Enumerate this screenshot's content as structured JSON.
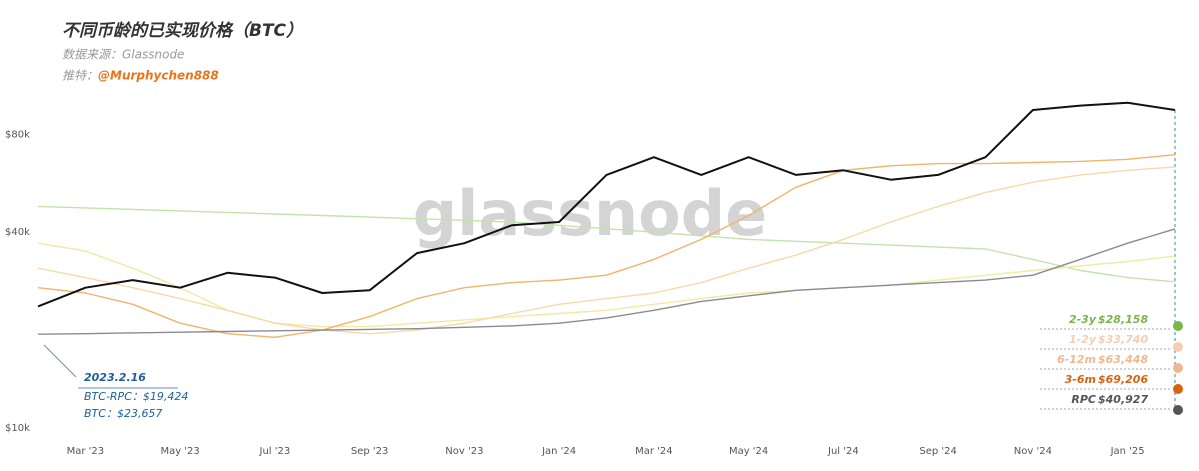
{
  "chart_data": {
    "type": "line",
    "title": "不同币龄的已实现价格（BTC）",
    "subtitle": "数据来源：Glassnode",
    "credit_prefix": "推特：",
    "credit": "@Murphychen888",
    "watermark": "glassnode",
    "yscale": "log",
    "ylim": [
      10000,
      120000
    ],
    "yticks": [
      {
        "value": 10000,
        "label": "$10k"
      },
      {
        "value": 40000,
        "label": "$40k"
      },
      {
        "value": 80000,
        "label": "$80k"
      }
    ],
    "categories": [
      null,
      "Mar '23",
      null,
      "May '23",
      null,
      "Jul '23",
      null,
      "Sep '23",
      null,
      "Nov '23",
      null,
      "Jan '24",
      null,
      "Mar '24",
      null,
      "May '24",
      null,
      "Jul '24",
      null,
      "Sep '24",
      null,
      "Nov '24",
      null,
      "Jan '25",
      null
    ],
    "series": [
      {
        "name": "2-3y",
        "color": "#c4e3a8",
        "label_color": "#7ab648",
        "values": [
          48000,
          47500,
          47000,
          46500,
          46000,
          45500,
          45000,
          44500,
          44000,
          43500,
          43000,
          42000,
          41000,
          40000,
          39000,
          38000,
          37500,
          37000,
          36500,
          36000,
          35500,
          33000,
          30500,
          29000,
          28158
        ],
        "value_labels": [
          null,
          null,
          null,
          null,
          null,
          null,
          null,
          null,
          null,
          null,
          null,
          null,
          null,
          null,
          null,
          null,
          null,
          null,
          null,
          null,
          null,
          null,
          null,
          null,
          "$28,158"
        ]
      },
      {
        "name": "1-2y",
        "color": "#f3e9a0",
        "label_color": "#f5cdb2",
        "values": [
          37000,
          35000,
          31000,
          27000,
          23000,
          21000,
          20500,
          20500,
          21000,
          21500,
          22000,
          22500,
          23000,
          24000,
          25000,
          26000,
          26500,
          27000,
          27500,
          28500,
          29500,
          30500,
          31500,
          32500,
          33740
        ],
        "value_labels": [
          null,
          null,
          null,
          null,
          null,
          null,
          null,
          null,
          null,
          null,
          null,
          null,
          null,
          null,
          null,
          null,
          null,
          null,
          null,
          null,
          null,
          null,
          null,
          null,
          "$33,740"
        ]
      },
      {
        "name": "6-12m",
        "color": "#f8d9a8",
        "label_color": "#efb88f",
        "values": [
          31000,
          29000,
          27000,
          25000,
          23000,
          21000,
          20000,
          19500,
          20000,
          21000,
          22500,
          24000,
          25000,
          26000,
          28000,
          31000,
          34000,
          38000,
          43000,
          48000,
          53000,
          57000,
          60000,
          62000,
          63448
        ],
        "value_labels": [
          null,
          null,
          null,
          null,
          null,
          null,
          null,
          null,
          null,
          null,
          null,
          null,
          null,
          null,
          null,
          null,
          null,
          null,
          null,
          null,
          null,
          null,
          null,
          null,
          "$63,448"
        ]
      },
      {
        "name": "3-6m",
        "color": "#f2b36a",
        "label_color": "#d9620f",
        "values": [
          27000,
          26000,
          24000,
          21000,
          19500,
          19000,
          20000,
          22000,
          25000,
          27000,
          28000,
          28500,
          29500,
          33000,
          38000,
          45000,
          55000,
          62000,
          64000,
          65000,
          65000,
          65500,
          66000,
          67000,
          69206
        ],
        "value_labels": [
          null,
          null,
          null,
          null,
          null,
          null,
          null,
          null,
          null,
          null,
          null,
          null,
          null,
          null,
          null,
          null,
          null,
          null,
          null,
          null,
          null,
          null,
          null,
          null,
          "$69,206"
        ]
      },
      {
        "name": "RPC",
        "color": "#8a8a96",
        "label_color": "#555555",
        "values": [
          19424,
          19500,
          19600,
          19700,
          19800,
          19900,
          20000,
          20100,
          20200,
          20400,
          20600,
          21000,
          21800,
          23000,
          24500,
          25500,
          26500,
          27000,
          27500,
          28000,
          28500,
          29500,
          33000,
          37000,
          40927
        ],
        "value_labels": [
          null,
          null,
          null,
          null,
          null,
          null,
          null,
          null,
          null,
          null,
          null,
          null,
          null,
          null,
          null,
          null,
          null,
          null,
          null,
          null,
          null,
          null,
          null,
          null,
          "$40,927"
        ]
      },
      {
        "color": "#111111",
        "values": [
          23657,
          27000,
          28500,
          27000,
          30000,
          29000,
          26000,
          26500,
          34500,
          37000,
          42000,
          43000,
          60000,
          68000,
          60000,
          68000,
          60000,
          62000,
          58000,
          60000,
          68000,
          95000,
          98000,
          100000,
          95000
        ]
      }
    ],
    "annotations": [
      "2023.2.16",
      "BTC-RPC：$19,424",
      "BTC：$23,657"
    ]
  }
}
